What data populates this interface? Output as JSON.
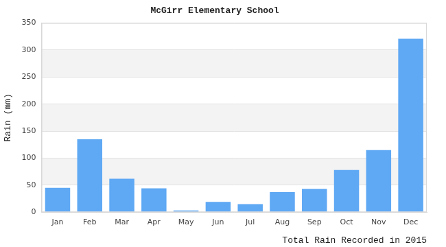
{
  "chart_data": {
    "type": "bar",
    "title": "McGirr Elementary School",
    "y_label": "Rain (mm)",
    "x_label": "Total Rain Recorded in 2015",
    "categories": [
      "Jan",
      "Feb",
      "Mar",
      "Apr",
      "May",
      "Jun",
      "Jul",
      "Aug",
      "Sep",
      "Oct",
      "Nov",
      "Dec"
    ],
    "values": [
      45,
      135,
      62,
      44,
      3,
      19,
      15,
      37,
      43,
      78,
      115,
      321
    ],
    "color": "#5ea8f4",
    "ylim": [
      0,
      350
    ],
    "yticks": [
      0,
      50,
      100,
      150,
      200,
      250,
      300,
      350
    ],
    "grid": true
  }
}
